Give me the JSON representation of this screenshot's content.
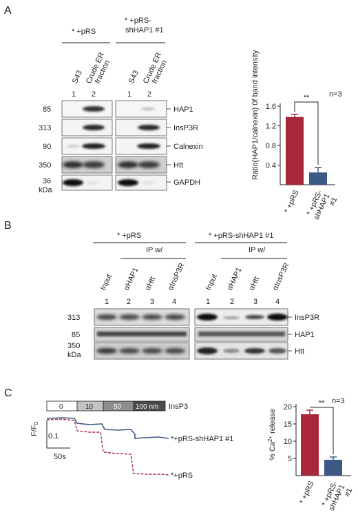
{
  "panels": {
    "a": "A",
    "b": "B",
    "c": "C"
  },
  "panel_a": {
    "group_headers": [
      "* +pRS",
      "* +pRS-",
      "shHAP1 #1"
    ],
    "lane_labels": [
      "S43",
      "Crude ER",
      "fraction",
      "S43",
      "Crude ER",
      "fraction"
    ],
    "lane_numbers": [
      "1",
      "2",
      "1",
      "2"
    ],
    "mw_markers": [
      "85",
      "313",
      "90",
      "350",
      "36",
      "kDa"
    ],
    "proteins": [
      "HAP1",
      "InsP3R",
      "Calnexin",
      "Htt",
      "GAPDH"
    ]
  },
  "panel_b": {
    "group_headers": [
      "* +pRS",
      "* +pRS-shHAP1 #1"
    ],
    "ip_label": "IP w/",
    "lane_labels": [
      "Input",
      "αHAP1",
      "αHtt",
      "αInsP3R",
      "Input",
      "αHAP1",
      "αHtt",
      "αInsP3R"
    ],
    "lane_numbers": [
      "1",
      "2",
      "3",
      "4",
      "1",
      "2",
      "3",
      "4"
    ],
    "mw_markers": [
      "313",
      "85",
      "350",
      "kDa"
    ],
    "proteins": [
      "InsP3R",
      "HAP1",
      "Htt"
    ]
  },
  "panel_c": {
    "ip3_steps": [
      "0",
      "10",
      "50",
      "100 nm"
    ],
    "ip3_label": "InsP3",
    "ylabel": "F/F",
    "ylabel_sub": "0",
    "scale_y": "0.1",
    "scale_x": "50s",
    "trace_labels": [
      "*+pRS-shHAP1 #1",
      "*+pRS"
    ],
    "colors": {
      "prs": "#a8273b",
      "shhap1": "#3c5a85"
    }
  },
  "chart_data": [
    {
      "type": "bar",
      "categories": [
        "* +pRS",
        "* +pRS-shHAP1 #1"
      ],
      "values": [
        1.38,
        0.25
      ],
      "errors": [
        0.05,
        0.1
      ],
      "ylabel": "Ratio(HAP1/calnexin) 0f band intensity",
      "yticks": [
        "1.6",
        "1.2",
        "0.8",
        "0.4"
      ],
      "ylim": [
        0,
        1.6
      ],
      "annotation": "n=3",
      "significance": "**",
      "category_lines": [
        [
          "* +pRS"
        ],
        [
          "* +pRS-",
          "shHAP1",
          "#1"
        ]
      ]
    },
    {
      "type": "bar",
      "categories": [
        "* +pRS",
        "* +pRS-shHAP1 #1"
      ],
      "values": [
        17.8,
        4.6
      ],
      "errors": [
        1.2,
        0.8
      ],
      "ylabel": "% Ca",
      "ylabel_sup": "2+",
      "ylabel_tail": " release",
      "yticks": [
        "20",
        "15",
        "10",
        "5"
      ],
      "ylim": [
        0,
        20
      ],
      "annotation": "n=3",
      "significance": "**",
      "category_lines": [
        [
          "* +pRS"
        ],
        [
          "* +pRS-",
          "shHAP1",
          "#1"
        ]
      ]
    }
  ]
}
